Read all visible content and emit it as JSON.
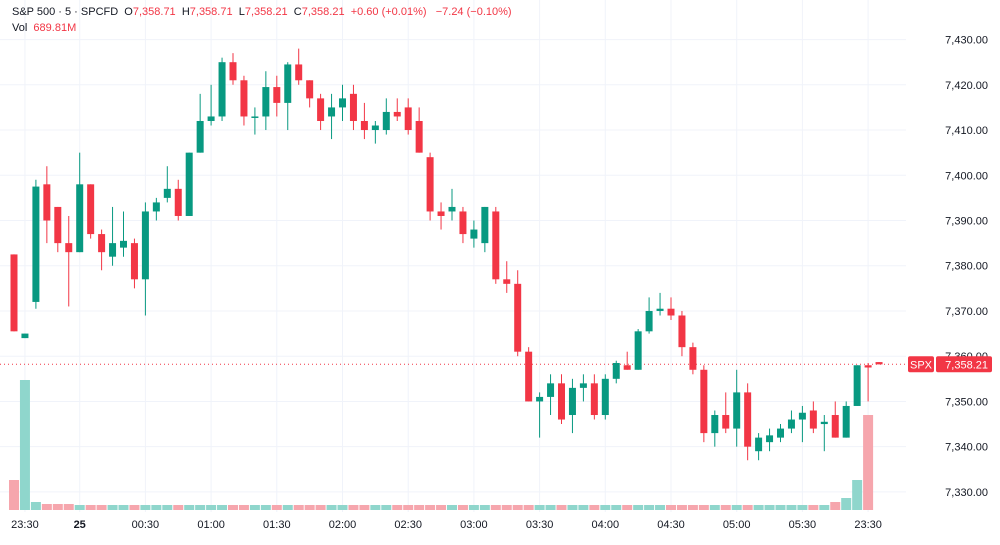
{
  "legend": {
    "symbol": "S&P 500 · 5 · SPCFD",
    "o_label": "O",
    "o_value": "7,358.71",
    "h_label": "H",
    "h_value": "7,358.71",
    "l_label": "L",
    "l_value": "7,358.21",
    "c_label": "C",
    "c_value": "7,358.21",
    "change": "+0.60 (+0.01%)",
    "change2": "−7.24 (−0.10%)",
    "vol_label": "Vol",
    "vol_value": "689.81M"
  },
  "price_badge": {
    "ticker": "SPX",
    "price": "7,358.21"
  },
  "colors": {
    "up": "#089981",
    "down": "#f23645",
    "vol_up": "#8fd6cc",
    "vol_down": "#f6a6ad"
  },
  "chart_data": {
    "type": "candlestick",
    "interval": "5",
    "ylim": [
      7326,
      7433
    ],
    "y_ticks": [
      "7,330.00",
      "7,340.00",
      "7,350.00",
      "7,360.00",
      "7,370.00",
      "7,380.00",
      "7,390.00",
      "7,400.00",
      "7,410.00",
      "7,420.00",
      "7,430.00"
    ],
    "y_tick_values": [
      7330,
      7340,
      7350,
      7360,
      7370,
      7380,
      7390,
      7400,
      7410,
      7420,
      7430
    ],
    "x_ticks": [
      {
        "label": "23:30",
        "index": 1
      },
      {
        "label": "25",
        "index": 6,
        "bold": true
      },
      {
        "label": "00:30",
        "index": 12
      },
      {
        "label": "01:00",
        "index": 18
      },
      {
        "label": "01:30",
        "index": 24
      },
      {
        "label": "02:00",
        "index": 30
      },
      {
        "label": "02:30",
        "index": 36
      },
      {
        "label": "03:00",
        "index": 42
      },
      {
        "label": "03:30",
        "index": 48
      },
      {
        "label": "04:00",
        "index": 54
      },
      {
        "label": "04:30",
        "index": 60
      },
      {
        "label": "05:00",
        "index": 66
      },
      {
        "label": "05:30",
        "index": 72
      },
      {
        "label": "23:30",
        "index": 78
      }
    ],
    "last_price": 7358.21,
    "candles": [
      {
        "o": 7382.5,
        "h": 7382.5,
        "l": 7365.5,
        "c": 7365.5,
        "v": 30
      },
      {
        "o": 7364.0,
        "h": 7365.0,
        "l": 7364.0,
        "c": 7365.0,
        "v": 130
      },
      {
        "o": 7372.0,
        "h": 7399.0,
        "l": 7370.5,
        "c": 7397.5,
        "v": 8
      },
      {
        "o": 7398.0,
        "h": 7402.0,
        "l": 7385.0,
        "c": 7390.0,
        "v": 6
      },
      {
        "o": 7393.0,
        "h": 7393.0,
        "l": 7383.0,
        "c": 7385.0,
        "v": 6
      },
      {
        "o": 7385.0,
        "h": 7391.0,
        "l": 7371.0,
        "c": 7383.0,
        "v": 6
      },
      {
        "o": 7383.0,
        "h": 7405.0,
        "l": 7383.0,
        "c": 7398.0,
        "v": 5
      },
      {
        "o": 7398.0,
        "h": 7398.0,
        "l": 7386.0,
        "c": 7387.0,
        "v": 5
      },
      {
        "o": 7387.0,
        "h": 7388.0,
        "l": 7379.0,
        "c": 7383.0,
        "v": 5
      },
      {
        "o": 7382.0,
        "h": 7393.0,
        "l": 7380.0,
        "c": 7385.0,
        "v": 5
      },
      {
        "o": 7384.0,
        "h": 7392.0,
        "l": 7382.0,
        "c": 7385.5,
        "v": 5
      },
      {
        "o": 7385.0,
        "h": 7386.0,
        "l": 7375.0,
        "c": 7377.0,
        "v": 5
      },
      {
        "o": 7377.0,
        "h": 7394.0,
        "l": 7369.0,
        "c": 7392.0,
        "v": 5
      },
      {
        "o": 7392.0,
        "h": 7395.0,
        "l": 7390.0,
        "c": 7394.0,
        "v": 5
      },
      {
        "o": 7395.0,
        "h": 7402.0,
        "l": 7394.0,
        "c": 7397.0,
        "v": 5
      },
      {
        "o": 7397.0,
        "h": 7399.0,
        "l": 7390.0,
        "c": 7391.0,
        "v": 5
      },
      {
        "o": 7391.0,
        "h": 7405.0,
        "l": 7391.0,
        "c": 7405.0,
        "v": 5
      },
      {
        "o": 7405.0,
        "h": 7418.0,
        "l": 7405.0,
        "c": 7412.0,
        "v": 5
      },
      {
        "o": 7412.0,
        "h": 7420.0,
        "l": 7411.0,
        "c": 7413.0,
        "v": 5
      },
      {
        "o": 7413.0,
        "h": 7426.0,
        "l": 7412.0,
        "c": 7425.0,
        "v": 5
      },
      {
        "o": 7425.0,
        "h": 7427.0,
        "l": 7420.0,
        "c": 7421.0,
        "v": 5
      },
      {
        "o": 7421.0,
        "h": 7422.0,
        "l": 7411.0,
        "c": 7413.0,
        "v": 5
      },
      {
        "o": 7413.0,
        "h": 7415.0,
        "l": 7409.0,
        "c": 7413.0,
        "v": 5
      },
      {
        "o": 7413.0,
        "h": 7423.0,
        "l": 7410.0,
        "c": 7419.5,
        "v": 5
      },
      {
        "o": 7419.5,
        "h": 7422.0,
        "l": 7413.0,
        "c": 7416.0,
        "v": 5
      },
      {
        "o": 7416.0,
        "h": 7425.0,
        "l": 7410.0,
        "c": 7424.5,
        "v": 5
      },
      {
        "o": 7424.5,
        "h": 7428.0,
        "l": 7420.0,
        "c": 7421.0,
        "v": 5
      },
      {
        "o": 7421.0,
        "h": 7421.0,
        "l": 7415.0,
        "c": 7417.0,
        "v": 5
      },
      {
        "o": 7417.0,
        "h": 7418.0,
        "l": 7410.0,
        "c": 7412.0,
        "v": 5
      },
      {
        "o": 7413.0,
        "h": 7418.0,
        "l": 7408.0,
        "c": 7415.0,
        "v": 5
      },
      {
        "o": 7415.0,
        "h": 7420.0,
        "l": 7412.0,
        "c": 7417.0,
        "v": 5
      },
      {
        "o": 7418.0,
        "h": 7420.0,
        "l": 7410.0,
        "c": 7412.0,
        "v": 5
      },
      {
        "o": 7412.0,
        "h": 7416.0,
        "l": 7408.0,
        "c": 7410.0,
        "v": 5
      },
      {
        "o": 7410.0,
        "h": 7412.0,
        "l": 7407.0,
        "c": 7411.0,
        "v": 5
      },
      {
        "o": 7410.0,
        "h": 7417.0,
        "l": 7409.0,
        "c": 7414.0,
        "v": 5
      },
      {
        "o": 7414.0,
        "h": 7417.0,
        "l": 7412.0,
        "c": 7413.0,
        "v": 5
      },
      {
        "o": 7415.0,
        "h": 7417.0,
        "l": 7409.0,
        "c": 7410.0,
        "v": 5
      },
      {
        "o": 7412.0,
        "h": 7415.0,
        "l": 7405.0,
        "c": 7405.0,
        "v": 5
      },
      {
        "o": 7404.0,
        "h": 7405.0,
        "l": 7390.0,
        "c": 7392.0,
        "v": 5
      },
      {
        "o": 7392.0,
        "h": 7394.0,
        "l": 7388.0,
        "c": 7391.0,
        "v": 5
      },
      {
        "o": 7392.0,
        "h": 7397.0,
        "l": 7390.0,
        "c": 7393.0,
        "v": 5
      },
      {
        "o": 7392.0,
        "h": 7393.0,
        "l": 7385.0,
        "c": 7387.0,
        "v": 5
      },
      {
        "o": 7386.0,
        "h": 7390.0,
        "l": 7384.0,
        "c": 7388.0,
        "v": 5
      },
      {
        "o": 7385.0,
        "h": 7393.0,
        "l": 7383.0,
        "c": 7393.0,
        "v": 5
      },
      {
        "o": 7392.0,
        "h": 7393.0,
        "l": 7376.0,
        "c": 7377.0,
        "v": 5
      },
      {
        "o": 7377.0,
        "h": 7381.0,
        "l": 7374.0,
        "c": 7376.0,
        "v": 5
      },
      {
        "o": 7376.0,
        "h": 7379.0,
        "l": 7360.0,
        "c": 7361.0,
        "v": 5
      },
      {
        "o": 7361.0,
        "h": 7362.0,
        "l": 7350.0,
        "c": 7350.0,
        "v": 5
      },
      {
        "o": 7350.0,
        "h": 7352.0,
        "l": 7342.0,
        "c": 7351.0,
        "v": 5
      },
      {
        "o": 7351.0,
        "h": 7356.0,
        "l": 7347.0,
        "c": 7354.0,
        "v": 5
      },
      {
        "o": 7354.0,
        "h": 7356.0,
        "l": 7345.0,
        "c": 7346.0,
        "v": 5
      },
      {
        "o": 7347.0,
        "h": 7355.0,
        "l": 7343.0,
        "c": 7353.0,
        "v": 5
      },
      {
        "o": 7353.0,
        "h": 7356.0,
        "l": 7350.0,
        "c": 7354.0,
        "v": 5
      },
      {
        "o": 7354.0,
        "h": 7356.0,
        "l": 7346.0,
        "c": 7347.0,
        "v": 5
      },
      {
        "o": 7347.0,
        "h": 7356.0,
        "l": 7346.0,
        "c": 7355.0,
        "v": 5
      },
      {
        "o": 7355.0,
        "h": 7359.0,
        "l": 7354.0,
        "c": 7358.5,
        "v": 5
      },
      {
        "o": 7358.0,
        "h": 7361.0,
        "l": 7357.0,
        "c": 7357.0,
        "v": 5
      },
      {
        "o": 7357.0,
        "h": 7366.0,
        "l": 7357.0,
        "c": 7365.5,
        "v": 5
      },
      {
        "o": 7365.5,
        "h": 7373.0,
        "l": 7365.0,
        "c": 7370.0,
        "v": 5
      },
      {
        "o": 7370.0,
        "h": 7374.0,
        "l": 7369.0,
        "c": 7370.5,
        "v": 5
      },
      {
        "o": 7370.5,
        "h": 7373.0,
        "l": 7368.0,
        "c": 7369.0,
        "v": 5
      },
      {
        "o": 7369.0,
        "h": 7370.0,
        "l": 7360.0,
        "c": 7362.0,
        "v": 5
      },
      {
        "o": 7362.0,
        "h": 7363.0,
        "l": 7356.0,
        "c": 7357.0,
        "v": 5
      },
      {
        "o": 7357.0,
        "h": 7358.0,
        "l": 7341.0,
        "c": 7343.0,
        "v": 5
      },
      {
        "o": 7343.0,
        "h": 7348.0,
        "l": 7340.0,
        "c": 7347.0,
        "v": 5
      },
      {
        "o": 7347.0,
        "h": 7352.0,
        "l": 7343.0,
        "c": 7344.0,
        "v": 5
      },
      {
        "o": 7344.0,
        "h": 7357.0,
        "l": 7340.0,
        "c": 7352.0,
        "v": 5
      },
      {
        "o": 7352.0,
        "h": 7354.0,
        "l": 7337.0,
        "c": 7340.0,
        "v": 5
      },
      {
        "o": 7339.0,
        "h": 7343.0,
        "l": 7337.0,
        "c": 7342.0,
        "v": 5
      },
      {
        "o": 7341.0,
        "h": 7344.0,
        "l": 7339.0,
        "c": 7342.5,
        "v": 5
      },
      {
        "o": 7342.0,
        "h": 7345.0,
        "l": 7341.0,
        "c": 7344.0,
        "v": 5
      },
      {
        "o": 7344.0,
        "h": 7348.0,
        "l": 7343.0,
        "c": 7346.0,
        "v": 5
      },
      {
        "o": 7346.0,
        "h": 7349.0,
        "l": 7341.0,
        "c": 7347.5,
        "v": 5
      },
      {
        "o": 7348.0,
        "h": 7350.0,
        "l": 7343.0,
        "c": 7344.0,
        "v": 5
      },
      {
        "o": 7345.0,
        "h": 7347.0,
        "l": 7339.0,
        "c": 7345.5,
        "v": 5
      },
      {
        "o": 7347.0,
        "h": 7350.0,
        "l": 7342.0,
        "c": 7342.0,
        "v": 8
      },
      {
        "o": 7342.0,
        "h": 7350.0,
        "l": 7342.0,
        "c": 7349.0,
        "v": 12
      },
      {
        "o": 7349.0,
        "h": 7358.0,
        "l": 7349.0,
        "c": 7358.0,
        "v": 30
      },
      {
        "o": 7358.0,
        "h": 7358.5,
        "l": 7350.0,
        "c": 7357.5,
        "v": 95
      },
      {
        "o": 7358.7,
        "h": 7358.7,
        "l": 7358.2,
        "c": 7358.2,
        "v": 0
      }
    ]
  }
}
